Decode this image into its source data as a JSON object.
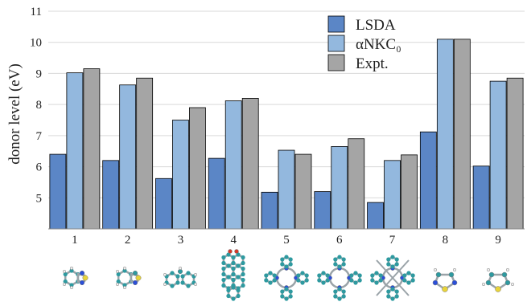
{
  "chart_data": {
    "type": "bar",
    "ylabel": "donor level (eV)",
    "ylim": [
      4,
      11
    ],
    "yticks": [
      5,
      6,
      7,
      8,
      9,
      10,
      11
    ],
    "grid": "horizontal",
    "legend_position": "top-right",
    "categories": [
      "1",
      "2",
      "3",
      "4",
      "5",
      "6",
      "7",
      "8",
      "9"
    ],
    "series": [
      {
        "name": "LSDA",
        "color": "#5b86c6",
        "values": [
          6.4,
          6.2,
          5.62,
          6.27,
          5.18,
          5.2,
          4.85,
          7.12,
          6.02
        ]
      },
      {
        "name": "αNKC₀",
        "color": "#93b8de",
        "values": [
          9.02,
          8.63,
          7.5,
          8.12,
          6.53,
          6.65,
          6.2,
          10.1,
          8.75
        ]
      },
      {
        "name": "Expt.",
        "color": "#a5a5a5",
        "values": [
          9.15,
          8.85,
          7.9,
          8.2,
          6.4,
          6.9,
          6.38,
          10.1,
          8.85
        ]
      }
    ]
  },
  "molecules": [
    {
      "category": "1",
      "icon": "benzothiadiazole-molecule-icon"
    },
    {
      "category": "2",
      "icon": "benzothiazole-molecule-icon"
    },
    {
      "category": "3",
      "icon": "fluorene-molecule-icon"
    },
    {
      "category": "4",
      "icon": "perylene-dicarboxy-molecule-icon"
    },
    {
      "category": "5",
      "icon": "porphyrin-molecule-icon"
    },
    {
      "category": "6",
      "icon": "porphyrin-ring-molecule-icon"
    },
    {
      "category": "7",
      "icon": "substituted-porphyrin-molecule-icon"
    },
    {
      "category": "8",
      "icon": "thiadiazole-molecule-icon"
    },
    {
      "category": "9",
      "icon": "thiophene-molecule-icon"
    }
  ]
}
